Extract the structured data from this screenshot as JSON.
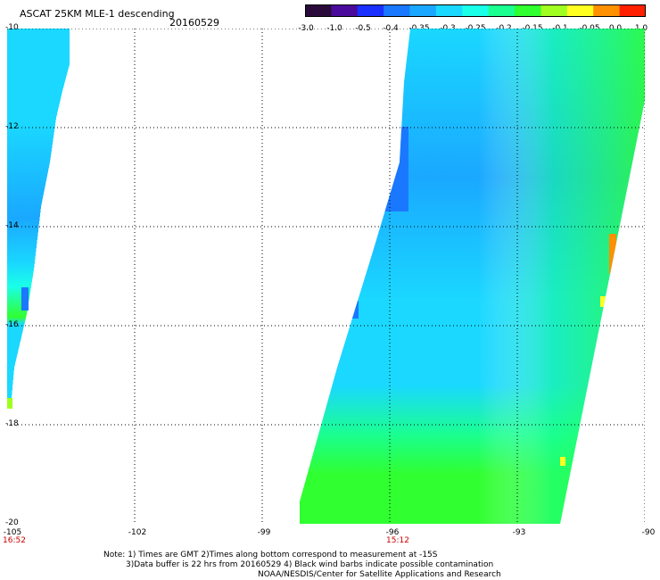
{
  "header": {
    "title": "ASCAT 25KM MLE-1 descending",
    "date": "20160529"
  },
  "colorbar": {
    "labels": [
      "-3.0",
      "-1.0",
      "-0.5",
      "-0.4",
      "-0.35",
      "-0.3",
      "-0.25",
      "-0.2",
      "-0.15",
      "-0.1",
      "-0.05",
      "0.0",
      "1.0"
    ],
    "colors": [
      "#2a0a3a",
      "#4a0a9a",
      "#1a30ff",
      "#1a78ff",
      "#1aa8ff",
      "#1ad8ff",
      "#1affe8",
      "#1aff90",
      "#30ff30",
      "#a0ff20",
      "#ffff20",
      "#ff9000",
      "#ff2000"
    ]
  },
  "map": {
    "lat_labels": [
      "-10",
      "-12",
      "-14",
      "-16",
      "-18",
      "-20"
    ],
    "lon_labels": [
      "-105",
      "-102",
      "-99",
      "-96",
      "-93",
      "-90"
    ],
    "time_labels": [
      {
        "lon": "-105",
        "time": "16:52"
      },
      {
        "lon": "-96",
        "time": "15:12"
      }
    ]
  },
  "notes": {
    "line1": "Note: 1) Times are GMT 2)Times along bottom correspond to measurement at -15S",
    "line2": "3)Data buffer is 22 hrs from 20160529 4) Black wind barbs indicate possible contamination",
    "line3": "NOAA/NESDIS/Center for Satellite Applications and Research"
  }
}
